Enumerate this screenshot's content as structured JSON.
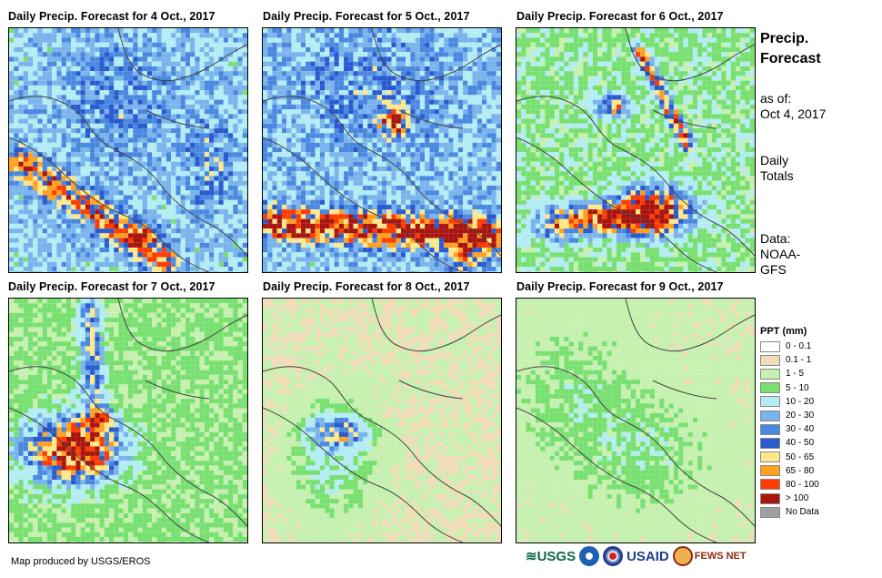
{
  "panels": [
    {
      "title": "Daily Precip. Forecast for 4 Oct., 2017",
      "day": 0
    },
    {
      "title": "Daily Precip. Forecast for 5 Oct., 2017",
      "day": 1
    },
    {
      "title": "Daily Precip. Forecast for 6 Oct., 2017",
      "day": 2
    },
    {
      "title": "Daily Precip. Forecast for 7 Oct., 2017",
      "day": 3
    },
    {
      "title": "Daily Precip. Forecast for 8 Oct., 2017",
      "day": 4
    },
    {
      "title": "Daily Precip. Forecast for 9 Oct., 2017",
      "day": 5
    }
  ],
  "side": {
    "title_line1": "Precip.",
    "title_line2": "Forecast",
    "asof_line1": "as of:",
    "asof_line2": "Oct 4, 2017",
    "totals_line1": "Daily",
    "totals_line2": "Totals",
    "data_line1": "Data:",
    "data_line2": "NOAA-",
    "data_line3": "GFS"
  },
  "legend": {
    "title": "PPT (mm)",
    "items": [
      {
        "label": "0 - 0.1",
        "color": "#ffffff"
      },
      {
        "label": "0.1 - 1",
        "color": "#f0dcb8"
      },
      {
        "label": "1 - 5",
        "color": "#c6f0b0"
      },
      {
        "label": "5 - 10",
        "color": "#78e070"
      },
      {
        "label": "10 - 20",
        "color": "#b4ecf4"
      },
      {
        "label": "20 - 30",
        "color": "#7ab4ec"
      },
      {
        "label": "30 - 40",
        "color": "#4a88e0"
      },
      {
        "label": "40 - 50",
        "color": "#2a5ad0"
      },
      {
        "label": "50 - 65",
        "color": "#ffe88a"
      },
      {
        "label": "65 - 80",
        "color": "#ffa020"
      },
      {
        "label": "80 - 100",
        "color": "#ff3c00"
      },
      {
        "label": "> 100",
        "color": "#a81410"
      },
      {
        "label": "No Data",
        "color": "#a0a0a0"
      }
    ]
  },
  "credit": "Map produced by USGS/EROS",
  "logos": {
    "usgs": "USGS",
    "usaid": "USAID",
    "fewsnet": "FEWS NET"
  }
}
